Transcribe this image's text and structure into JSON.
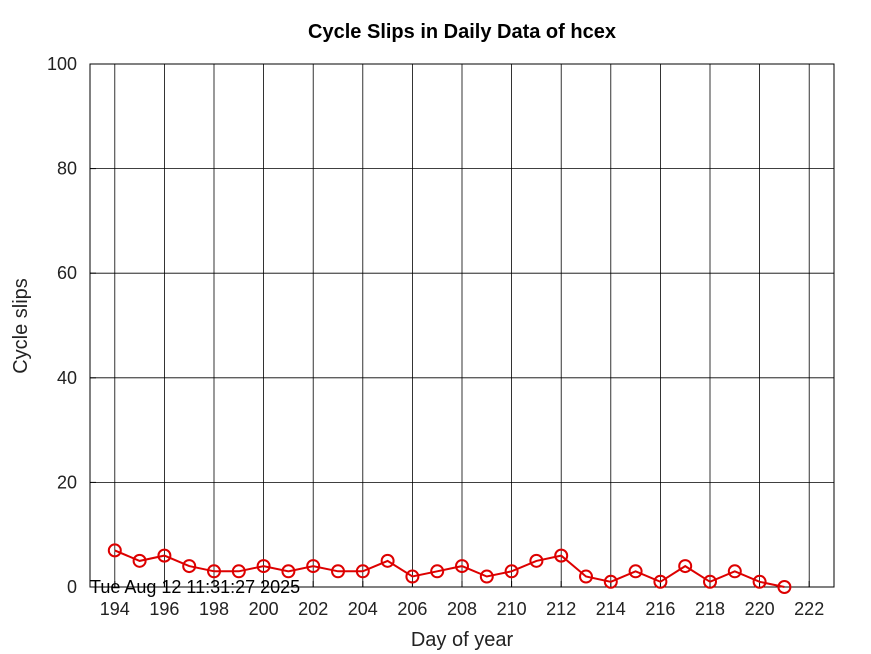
{
  "chart_data": {
    "type": "line",
    "title": "Cycle Slips in Daily Data of hcex",
    "xlabel": "Day of year",
    "ylabel": "Cycle slips",
    "xlim": [
      193,
      223
    ],
    "ylim": [
      0,
      100
    ],
    "x_ticks": [
      194,
      196,
      198,
      200,
      202,
      204,
      206,
      208,
      210,
      212,
      214,
      216,
      218,
      220,
      222
    ],
    "y_ticks": [
      0,
      20,
      40,
      60,
      80,
      100
    ],
    "grid": true,
    "legend": "none",
    "series": [
      {
        "color": "#dd0000",
        "marker": "circle",
        "x": [
          194,
          195,
          196,
          197,
          198,
          199,
          200,
          201,
          202,
          203,
          204,
          205,
          206,
          207,
          208,
          209,
          210,
          211,
          212,
          213,
          214,
          215,
          216,
          217,
          218,
          219,
          220,
          221
        ],
        "y": [
          7,
          5,
          6,
          4,
          3,
          3,
          4,
          3,
          4,
          3,
          3,
          5,
          2,
          3,
          4,
          2,
          3,
          5,
          6,
          2,
          1,
          3,
          1,
          4,
          1,
          3,
          1,
          0
        ]
      }
    ],
    "timestamp": "Tue Aug 12 11:31:27 2025"
  }
}
